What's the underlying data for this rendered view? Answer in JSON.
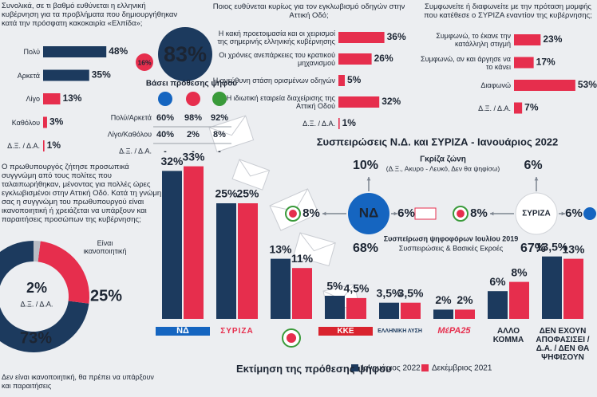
{
  "chart_data": [
    {
      "type": "bar",
      "orientation": "horizontal",
      "title": "Συνολικά, σε τι βαθμό ευθύνεται η ελληνική κυβέρνηση για τα προβλήματα που δημιουργήθηκαν κατά την πρόσφατη κακοκαιρία «Ελπίδα»;",
      "categories": [
        "Πολύ",
        "Αρκετά",
        "Λίγο",
        "Καθόλου",
        "Δ.Ξ. / Δ.Α."
      ],
      "values": [
        48,
        35,
        13,
        3,
        1
      ],
      "value_labels": [
        "48%",
        "35%",
        "13%",
        "3%",
        "1%"
      ],
      "colors": [
        "#1c3a5e",
        "#1c3a5e",
        "#e62e4d",
        "#e62e4d",
        "#e62e4d"
      ],
      "summary": [
        "83%",
        "16%"
      ]
    },
    {
      "type": "bar",
      "orientation": "horizontal",
      "title": "Ποιος ευθύνεται κυρίως για τον εγκλωβισμό οδηγών στην Αττική Οδό;",
      "categories": [
        "Η κακή προετοιμασία και οι χειρισμοί της σημερινής ελληνικής κυβέρνησης",
        "Οι χρόνιες ανεπάρκειες του κρατικού μηχανισμού",
        "Η ανεύθυνη στάση ορισμένων οδηγών",
        "Η ιδιωτική εταιρεία διαχείρισης της Αττική Οδού",
        "Δ.Ξ. / Δ.Α."
      ],
      "values": [
        36,
        26,
        5,
        32,
        1
      ],
      "value_labels": [
        "36%",
        "26%",
        "5%",
        "32%",
        "1%"
      ],
      "color": "#e62e4d"
    },
    {
      "type": "bar",
      "orientation": "horizontal",
      "title": "Συμφωνείτε ή διαφωνείτε με την πρόταση μομφής που κατέθεσε ο ΣΥΡΙΖΑ εναντίον της κυβέρνησης;",
      "categories": [
        "Συμφωνώ, το έκανε την κατάλληλη στιγμή",
        "Συμφωνώ, αν και άργησε να το κάνει",
        "Διαφωνώ",
        "Δ.Ξ. / Δ.Α."
      ],
      "values": [
        23,
        17,
        53,
        7
      ],
      "value_labels": [
        "23%",
        "17%",
        "53%",
        "7%"
      ],
      "color": "#e62e4d"
    },
    {
      "type": "pie",
      "donut": true,
      "title": "Ο πρωθυπουργός ζήτησε προσωπικά συγγνώμη από τους πολίτες που ταλαιπωρήθηκαν, μένοντας για πολλές ώρες εγκλωβισμένοι στην Αττική Οδό. Κατά τη γνώμη σας η συγγνώμη του πρωθυπουργού είναι ικανοποιητική ή χρειάζεται να υπάρξουν και παραιτήσεις προσώπων της κυβέρνησης;",
      "categories": [
        "Δεν είναι ικανοποιητική, θα πρέπει να υπάρξουν και παραιτήσεις",
        "Είναι ικανοποιητική",
        "Δ.Ξ. / Δ.Α."
      ],
      "values": [
        73,
        25,
        2
      ],
      "value_labels": [
        "73%",
        "25%",
        "2%"
      ],
      "colors": [
        "#1c3a5e",
        "#e62e4d",
        "#b8bcc4"
      ]
    },
    {
      "type": "bar",
      "title": "Εκτίμηση της πρόθεσης ψήφου",
      "categories": [
        "ΝΔ",
        "ΣΥΡΙΖΑ",
        null,
        "ΚΚΕ",
        "ΕΛΛΗΝΙΚΗ ΛΥΣΗ",
        "ΜέΡΑ25",
        "ΑΛΛΟ ΚΟΜΜΑ",
        "ΔΕΝ ΕΧΟΥΝ ΑΠΟΦΑΣΙΣΕΙ / Δ.Α. / ΔΕΝ ΘΑ ΨΗΦΙΣΟΥΝ"
      ],
      "series": [
        {
          "name": "Ιανουάριος 2022",
          "color": "#1c3a5e",
          "values": [
            32,
            25,
            13,
            5,
            3.5,
            2,
            6,
            13.5
          ],
          "value_labels": [
            "32%",
            "25%",
            "13%",
            "5%",
            "3,5%",
            "2%",
            "6%",
            "13,5%"
          ]
        },
        {
          "name": "Δεκέμβριος 2021",
          "color": "#e62e4d",
          "values": [
            33,
            25,
            11,
            4.5,
            3.5,
            2,
            8,
            13
          ],
          "value_labels": [
            "33%",
            "25%",
            "11%",
            "4,5%",
            "3,5%",
            "2%",
            "8%",
            "13%"
          ]
        }
      ]
    }
  ],
  "vote_intention_table": {
    "title": "Βάσει πρόθεσης ψήφου",
    "column_colors": [
      "#1565c0",
      "#e62e4d",
      "#3a9a3a"
    ],
    "rows": [
      {
        "label": "Πολύ/Αρκετά",
        "cells": [
          "60%",
          "98%",
          "92%"
        ]
      },
      {
        "label": "Λίγο/Καθόλου",
        "cells": [
          "40%",
          "2%",
          "8%"
        ]
      },
      {
        "label": "Δ.Ξ. / Δ.Α.",
        "cells": [
          "-",
          "-",
          "-"
        ]
      }
    ]
  },
  "retention": {
    "title": "Συσπειρώσεις Ν.Δ. και ΣΥΡΙΖΑ - Ιανουάριος 2022",
    "gray_zone_label": "Γκρίζα ζώνη",
    "gray_zone_note": "(Δ.Ξ., Ακυρο - Λευκό, Δεν θα ψηφίσω)",
    "retention_label": "Συσπείρωση ψηφοφόρων Ιουλίου 2019",
    "subtitle": "Συσπειρώσεις & Βασικές Εκροές",
    "parties": [
      {
        "logo": "ΝΔ",
        "gray_zone": "10%",
        "retention": "68%",
        "to_kinal": "8%",
        "to_rival": "6%"
      },
      {
        "logo": "ΣΥΡΙΖΑ",
        "gray_zone": "6%",
        "retention": "67%",
        "to_kinal": "8%",
        "to_rival": "6%"
      }
    ]
  }
}
